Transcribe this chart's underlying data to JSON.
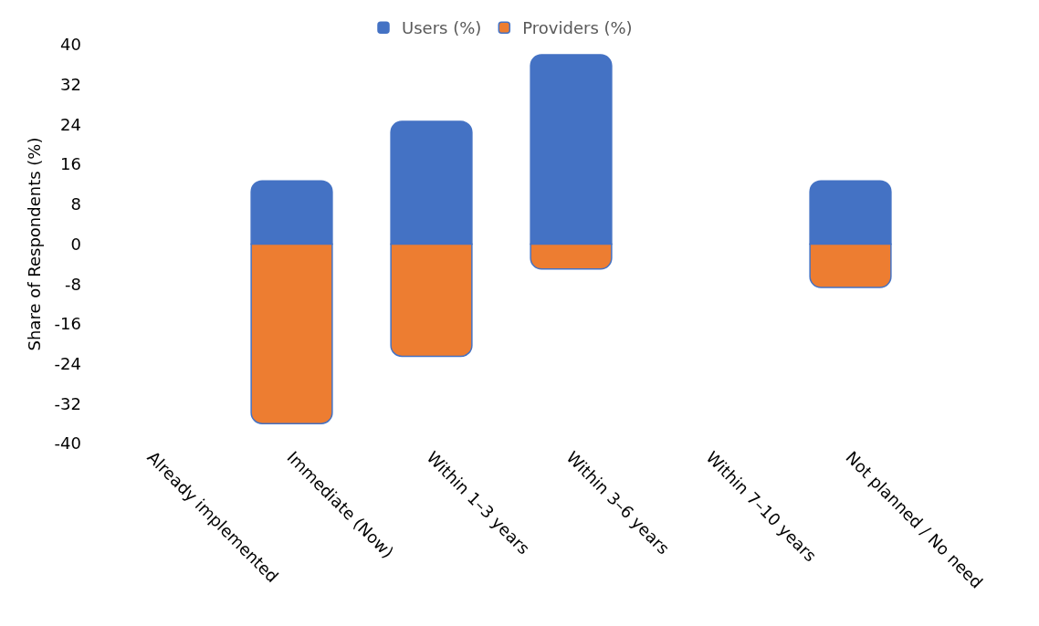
{
  "chart_data": {
    "type": "bar",
    "stacked": true,
    "ylabel": "Share of Respondents (%)",
    "categories": [
      "Already implemented",
      "Immediate (Now)",
      "Within 1–3 years",
      "Within 3–6 years",
      "Within 7–10 years",
      "Not planned / No need"
    ],
    "series": [
      {
        "name": "Users (%)",
        "color": "#4472c4",
        "values": [
          null,
          12.7,
          24.6,
          38,
          null,
          12.7
        ]
      },
      {
        "name": "Providers (%)",
        "color": "#ed7d31",
        "values": [
          null,
          -36,
          -22.5,
          -5,
          null,
          -8.7
        ]
      }
    ],
    "ylim": [
      -40,
      40
    ],
    "yticks": [
      -40,
      -32,
      -24,
      -16,
      -8,
      0,
      8,
      16,
      24,
      32,
      40
    ],
    "grid": false,
    "legend": "top"
  }
}
